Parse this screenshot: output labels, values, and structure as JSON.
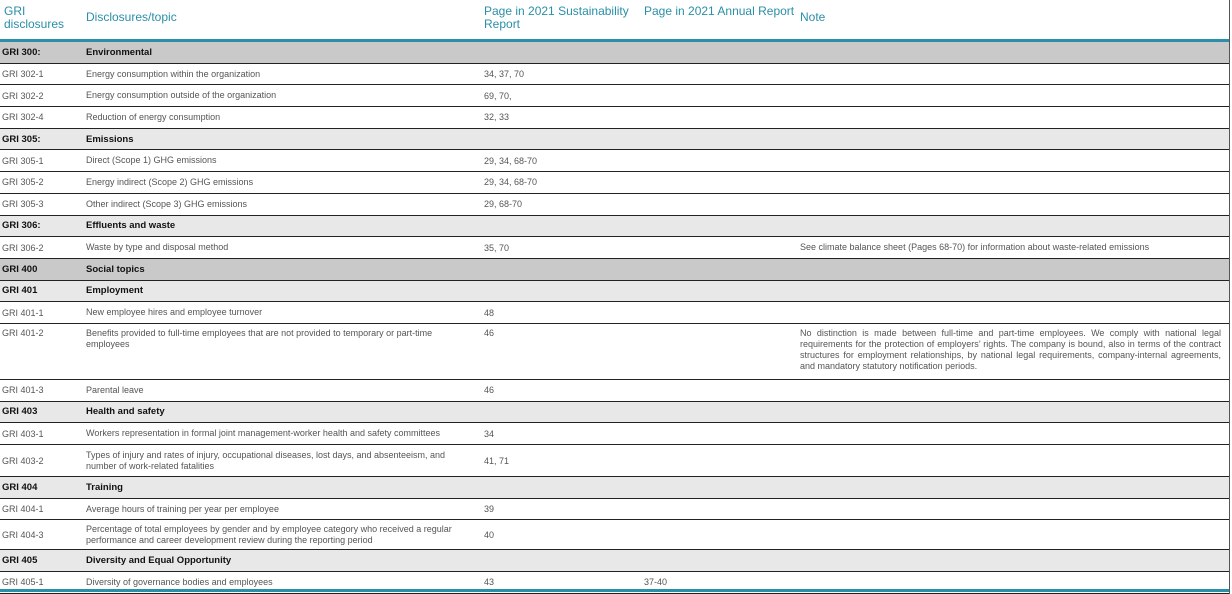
{
  "header": {
    "col1": "GRI disclosures",
    "col2": "Disclosures/topic",
    "col3": "Page in 2021 Sustainability Report",
    "col4": "Page in 2021 Annual Report",
    "col5": "Note"
  },
  "rows": [
    {
      "type": "section",
      "code": "GRI 300:",
      "topic": "Environmental",
      "major": true
    },
    {
      "type": "item",
      "code": "GRI 302-1",
      "topic": "Energy consumption within the organization",
      "sr": "34, 37, 70",
      "ar": "",
      "note": ""
    },
    {
      "type": "item",
      "code": "GRI 302-2",
      "topic": "Energy consumption outside of the organization",
      "sr": "69, 70,",
      "ar": "",
      "note": ""
    },
    {
      "type": "item",
      "code": "GRI 302-4",
      "topic": "Reduction of energy consumption",
      "sr": "32, 33",
      "ar": "",
      "note": ""
    },
    {
      "type": "section",
      "code": "GRI 305:",
      "topic": "Emissions"
    },
    {
      "type": "item",
      "code": "GRI 305-1",
      "topic": "Direct (Scope 1) GHG emissions",
      "sr": "29, 34, 68-70",
      "ar": "",
      "note": ""
    },
    {
      "type": "item",
      "code": "GRI 305-2",
      "topic": "Energy indirect (Scope 2) GHG emissions",
      "sr": "29, 34, 68-70",
      "ar": "",
      "note": ""
    },
    {
      "type": "item",
      "code": "GRI 305-3",
      "topic": "Other indirect (Scope 3) GHG emissions",
      "sr": "29, 68-70",
      "ar": "",
      "note": ""
    },
    {
      "type": "section",
      "code": "GRI 306:",
      "topic": "Effluents and waste"
    },
    {
      "type": "item",
      "code": "GRI 306-2",
      "topic": "Waste by type and disposal method",
      "sr": "35, 70",
      "ar": "",
      "note": "See climate balance sheet (Pages 68-70) for information about waste-related emissions"
    },
    {
      "type": "section",
      "code": "GRI 400",
      "topic": "Social topics",
      "major": true
    },
    {
      "type": "section",
      "code": "GRI 401",
      "topic": "Employment"
    },
    {
      "type": "item",
      "code": "GRI 401-1",
      "topic": "New employee hires and employee turnover",
      "sr": "48",
      "ar": "",
      "note": ""
    },
    {
      "type": "item",
      "code": "GRI 401-2",
      "topic": "Benefits provided to full-time employees that are not provided to temporary or part-time employees",
      "sr": "46",
      "ar": "",
      "note": "No distinction is made between full-time and part-time employees. We comply with national legal requirements for the protection of employers’ rights. The company is bound, also in terms of the contract structures for employment relationships, by national legal requirements, company-internal agreements, and mandatory statutory notification periods.",
      "h": 56,
      "top": true
    },
    {
      "type": "item",
      "code": "GRI 401-3",
      "topic": "Parental leave",
      "sr": "46",
      "ar": "",
      "note": ""
    },
    {
      "type": "section",
      "code": "GRI 403",
      "topic": "Health and safety"
    },
    {
      "type": "item",
      "code": "GRI 403-1",
      "topic": "Workers representation in formal joint management-worker health and safety committees",
      "sr": "34",
      "ar": "",
      "note": ""
    },
    {
      "type": "item",
      "code": "GRI 403-2",
      "topic": "Types of injury and rates of injury, occupational diseases, lost days, and absenteeism, and number of work-related fatalities",
      "sr": "41, 71",
      "ar": "",
      "note": "",
      "h": 32
    },
    {
      "type": "section",
      "code": "GRI 404",
      "topic": "Training"
    },
    {
      "type": "item",
      "code": "GRI 404-1",
      "topic": "Average hours of training per year per employee",
      "sr": "39",
      "ar": "",
      "note": ""
    },
    {
      "type": "item",
      "code": "GRI 404-3",
      "topic": "Percentage of total employees by gender and by employee category who received a regular performance and career development review during the reporting period",
      "sr": "40",
      "ar": "",
      "note": "",
      "h": 30
    },
    {
      "type": "section",
      "code": "GRI 405",
      "topic": "Diversity and Equal Opportunity"
    },
    {
      "type": "item",
      "code": "GRI 405-1",
      "topic": "Diversity of governance bodies and employees",
      "sr": "43",
      "ar": "37-40",
      "note": ""
    }
  ],
  "colors": {
    "accent": "#2a8fa8",
    "section_bg": "#e8e8e8",
    "major_bg": "#c9c9c9"
  }
}
